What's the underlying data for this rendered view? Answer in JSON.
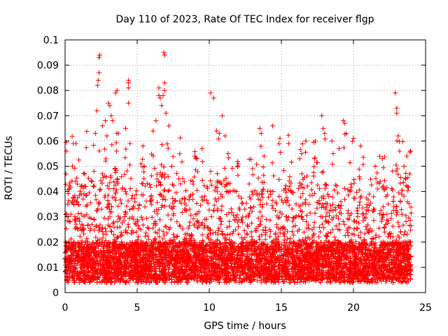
{
  "chart_data": {
    "type": "scatter",
    "title": "Day 110 of 2023, Rate Of TEC Index for receiver flgp",
    "xlabel": "GPS time / hours",
    "ylabel": "ROTI / TECUs",
    "xlim": [
      0,
      25
    ],
    "ylim": [
      0,
      0.1
    ],
    "xticks": [
      0,
      5,
      10,
      15,
      20,
      25
    ],
    "xtick_labels": [
      "0",
      "5",
      "10",
      "15",
      "20",
      "25"
    ],
    "yticks": [
      0,
      0.01,
      0.02,
      0.03,
      0.04,
      0.05,
      0.06,
      0.07,
      0.08,
      0.09,
      0.1
    ],
    "ytick_labels": [
      "0",
      "0.01",
      "0.02",
      "0.03",
      "0.04",
      "0.05",
      "0.06",
      "0.07",
      "0.08",
      "0.09",
      "0.1"
    ],
    "grid": true,
    "marker": "+",
    "marker_color": "#ff0000",
    "series": [
      {
        "name": "ROTI",
        "x_range": [
          0,
          24
        ],
        "typical_range": [
          0.005,
          0.02
        ],
        "points": [
          [
            0.05,
            0.047
          ],
          [
            0.1,
            0.056
          ],
          [
            0.3,
            0.041
          ],
          [
            0.4,
            0.031
          ],
          [
            0.5,
            0.036
          ],
          [
            0.6,
            0.035
          ],
          [
            0.75,
            0.059
          ],
          [
            0.9,
            0.025
          ],
          [
            1.5,
            0.031
          ],
          [
            2.0,
            0.048
          ],
          [
            2.1,
            0.063
          ],
          [
            2.2,
            0.072
          ],
          [
            2.25,
            0.082
          ],
          [
            2.3,
            0.084
          ],
          [
            2.35,
            0.087
          ],
          [
            2.35,
            0.093
          ],
          [
            2.4,
            0.094
          ],
          [
            2.6,
            0.066
          ],
          [
            2.8,
            0.068
          ],
          [
            2.9,
            0.062
          ],
          [
            3.0,
            0.075
          ],
          [
            3.1,
            0.074
          ],
          [
            3.2,
            0.07
          ],
          [
            3.3,
            0.068
          ],
          [
            3.5,
            0.079
          ],
          [
            3.6,
            0.08
          ],
          [
            3.7,
            0.063
          ],
          [
            4.2,
            0.065
          ],
          [
            4.4,
            0.083
          ],
          [
            4.4,
            0.084
          ],
          [
            4.4,
            0.081
          ],
          [
            4.4,
            0.075
          ],
          [
            4.5,
            0.059
          ],
          [
            5.4,
            0.058
          ],
          [
            5.5,
            0.05
          ],
          [
            6.1,
            0.064
          ],
          [
            6.3,
            0.068
          ],
          [
            6.5,
            0.081
          ],
          [
            6.5,
            0.078
          ],
          [
            6.6,
            0.077
          ],
          [
            6.7,
            0.074
          ],
          [
            6.8,
            0.078
          ],
          [
            6.85,
            0.095
          ],
          [
            6.9,
            0.094
          ],
          [
            6.9,
            0.083
          ],
          [
            6.9,
            0.08
          ],
          [
            7.0,
            0.071
          ],
          [
            7.2,
            0.066
          ],
          [
            7.4,
            0.05
          ],
          [
            8.0,
            0.043
          ],
          [
            9.0,
            0.054
          ],
          [
            9.5,
            0.057
          ],
          [
            10.1,
            0.079
          ],
          [
            10.3,
            0.077
          ],
          [
            10.5,
            0.064
          ],
          [
            10.7,
            0.063
          ],
          [
            10.9,
            0.07
          ],
          [
            11.1,
            0.062
          ],
          [
            11.3,
            0.055
          ],
          [
            12.0,
            0.051
          ],
          [
            13.0,
            0.049
          ],
          [
            13.5,
            0.065
          ],
          [
            13.6,
            0.063
          ],
          [
            13.8,
            0.054
          ],
          [
            14.4,
            0.066
          ],
          [
            14.9,
            0.061
          ],
          [
            15.5,
            0.059
          ],
          [
            16.4,
            0.055
          ],
          [
            16.7,
            0.06
          ],
          [
            17.3,
            0.053
          ],
          [
            17.8,
            0.07
          ],
          [
            17.9,
            0.065
          ],
          [
            18.0,
            0.063
          ],
          [
            18.5,
            0.06
          ],
          [
            19.0,
            0.057
          ],
          [
            19.3,
            0.068
          ],
          [
            19.4,
            0.067
          ],
          [
            19.5,
            0.063
          ],
          [
            20.0,
            0.061
          ],
          [
            20.5,
            0.058
          ],
          [
            21.5,
            0.05
          ],
          [
            22.0,
            0.053
          ],
          [
            22.9,
            0.079
          ],
          [
            23.0,
            0.073
          ],
          [
            23.0,
            0.071
          ],
          [
            23.1,
            0.062
          ],
          [
            23.2,
            0.056
          ],
          [
            23.5,
            0.05
          ],
          [
            23.7,
            0.054
          ],
          [
            23.9,
            0.047
          ]
        ]
      }
    ]
  }
}
